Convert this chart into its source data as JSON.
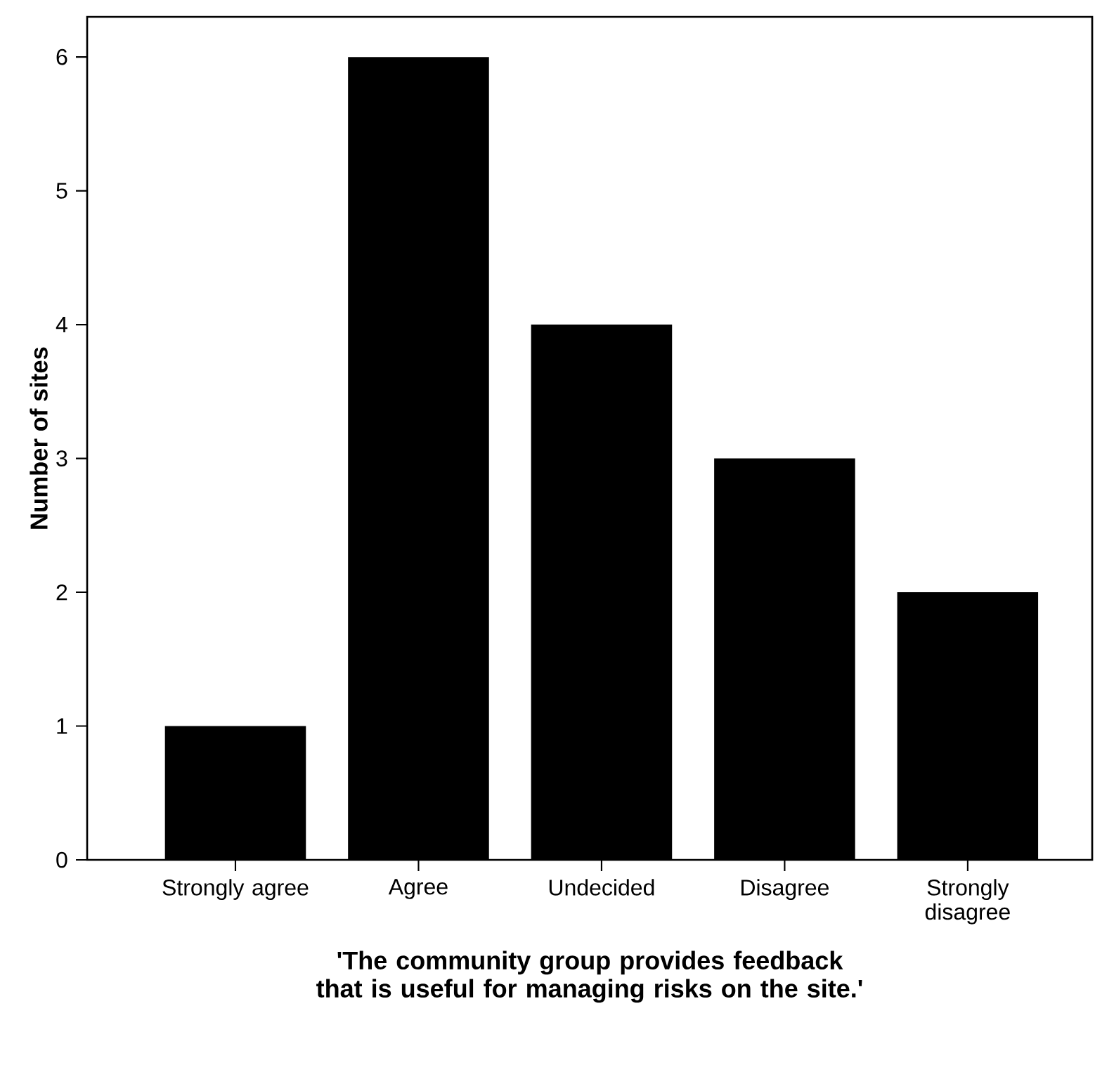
{
  "chart_data": {
    "type": "bar",
    "xlabel": "'The community group provides feedback that is useful for managing risks on the site.'",
    "ylabel": "Number of sites",
    "categories": [
      "Strongly agree",
      "Agree",
      "Undecided",
      "Disagree",
      "Strongly disagree"
    ],
    "values": [
      1,
      6,
      4,
      3,
      2
    ],
    "color": "#000000",
    "ylim": [
      0,
      6.3
    ],
    "yticks": [
      0,
      1,
      2,
      3,
      4,
      5,
      6
    ]
  }
}
